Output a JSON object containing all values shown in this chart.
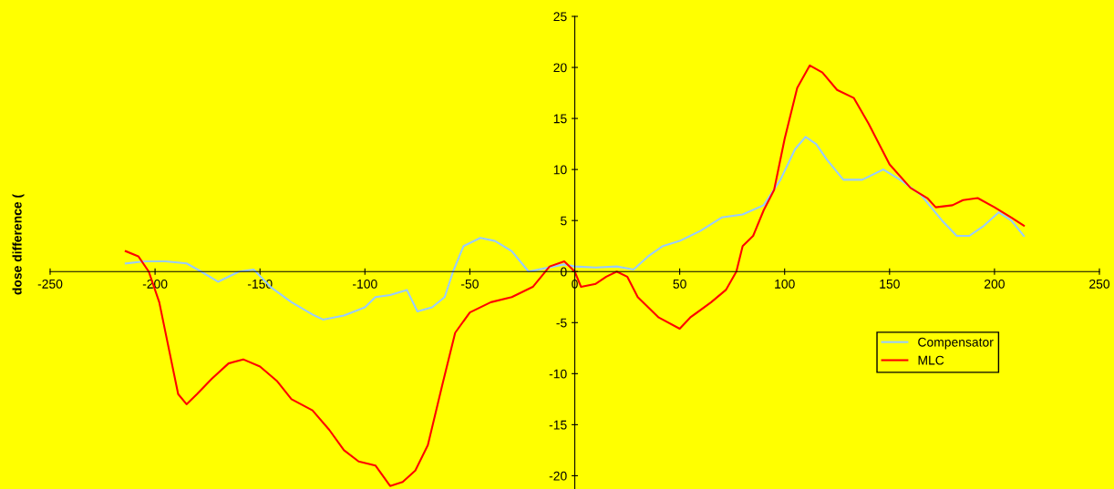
{
  "chart_data": {
    "type": "line",
    "ylabel": "dose difference (",
    "xlim": [
      -250,
      250
    ],
    "xticks": [
      -250,
      -200,
      -150,
      -100,
      -50,
      0,
      50,
      100,
      150,
      200,
      250
    ],
    "ylim": [
      -21.3,
      25
    ],
    "yticks": [
      -20,
      -15,
      -10,
      -5,
      0,
      5,
      10,
      15,
      20,
      25
    ],
    "grid": false,
    "legend": "right",
    "marker": "none",
    "line_style": "solid",
    "series": [
      {
        "name": "Compensator",
        "color": "#99ccff",
        "x": [
          -214,
          -205,
          -195,
          -185,
          -178,
          -170,
          -160,
          -153,
          -145,
          -135,
          -125,
          -120,
          -110,
          -100,
          -95,
          -88,
          -80,
          -75,
          -68,
          -62,
          -58,
          -53,
          -45,
          -38,
          -30,
          -22,
          -10,
          -5,
          0,
          10,
          20,
          28,
          35,
          42,
          50,
          60,
          70,
          80,
          90,
          98,
          105,
          110,
          115,
          120,
          128,
          137,
          147,
          155,
          165,
          175,
          182,
          188,
          195,
          202,
          208,
          214
        ],
        "values": [
          0.8,
          1.0,
          1.0,
          0.8,
          0,
          -1,
          0,
          0.2,
          -1.5,
          -3,
          -4.2,
          -4.7,
          -4.3,
          -3.5,
          -2.5,
          -2.3,
          -1.8,
          -3.9,
          -3.5,
          -2.5,
          0,
          2.5,
          3.3,
          3.0,
          2,
          0,
          0.5,
          0.7,
          0.5,
          0.4,
          0.5,
          0.2,
          1.5,
          2.5,
          3,
          4,
          5.3,
          5.6,
          6.5,
          9,
          12,
          13.2,
          12.5,
          11,
          9,
          9,
          10,
          9,
          7.5,
          5,
          3.5,
          3.5,
          4.5,
          5.8,
          5,
          3.5
        ]
      },
      {
        "name": "MLC",
        "color": "#ff0000",
        "x": [
          -214,
          -208,
          -203,
          -198,
          -193,
          -189,
          -185,
          -180,
          -173,
          -165,
          -158,
          -150,
          -142,
          -135,
          -125,
          -117,
          -110,
          -103,
          -95,
          -88,
          -82,
          -76,
          -70,
          -63,
          -57,
          -50,
          -40,
          -30,
          -20,
          -12,
          -5,
          0,
          3,
          10,
          15,
          20,
          25,
          30,
          40,
          50,
          55,
          65,
          72,
          77,
          80,
          85,
          90,
          95,
          100,
          106,
          112,
          118,
          125,
          133,
          140,
          150,
          160,
          168,
          172,
          180,
          185,
          192,
          200,
          208,
          214
        ],
        "values": [
          2.0,
          1.5,
          0,
          -3,
          -8,
          -12,
          -13,
          -12,
          -10.5,
          -9,
          -8.6,
          -9.3,
          -10.7,
          -12.5,
          -13.6,
          -15.5,
          -17.5,
          -18.6,
          -19,
          -21,
          -20.6,
          -19.5,
          -17,
          -11,
          -6,
          -4,
          -3,
          -2.5,
          -1.5,
          0.5,
          1,
          0,
          -1.5,
          -1.2,
          -0.5,
          0,
          -0.5,
          -2.5,
          -4.5,
          -5.6,
          -4.5,
          -3,
          -1.8,
          0,
          2.5,
          3.5,
          6,
          8,
          13,
          18,
          20.2,
          19.5,
          17.8,
          17,
          14.5,
          10.5,
          8.2,
          7.2,
          6.3,
          6.5,
          7,
          7.2,
          6.3,
          5.3,
          4.5
        ]
      }
    ]
  }
}
